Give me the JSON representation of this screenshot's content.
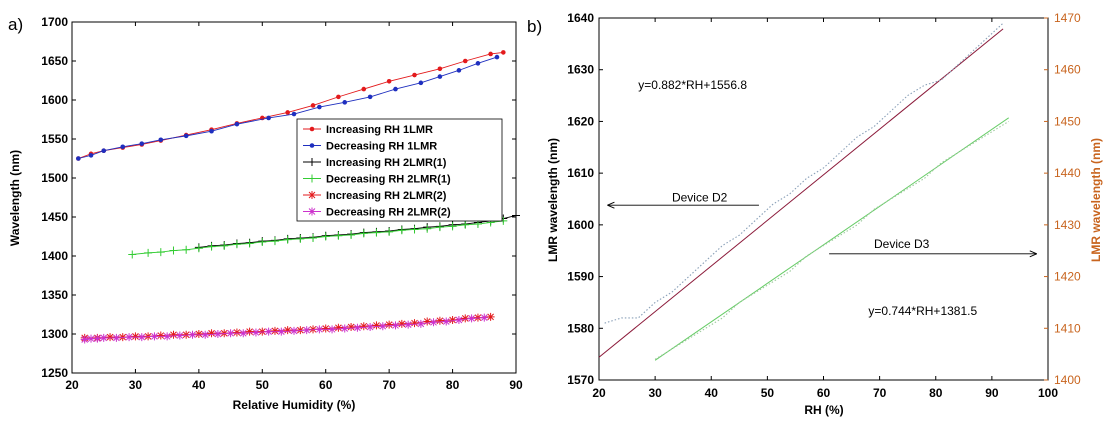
{
  "colors": {
    "red": "#e31a1c",
    "blue": "#1f2fbf",
    "black": "#000000",
    "green": "#33cc33",
    "magenta": "#cc33cc",
    "dark_red": "#8b1a3a",
    "light_green": "#66cc66",
    "orange_axis": "#c8641e",
    "gray_blue_dotted": "#8aa0b8",
    "gray_green_dotted": "#9ec99e"
  },
  "chart_data": [
    {
      "panel_label": "a)",
      "type": "line",
      "xlabel": "Relative Humidity (%)",
      "ylabel": "Wavelength (nm)",
      "xlim": [
        20,
        90
      ],
      "ylim": [
        1250,
        1700
      ],
      "xticks": [
        "20",
        "30",
        "40",
        "50",
        "60",
        "70",
        "80",
        "90"
      ],
      "yticks": [
        "1250",
        "1300",
        "1350",
        "1400",
        "1450",
        "1500",
        "1550",
        "1600",
        "1650",
        "1700"
      ],
      "legend_position": "right-middle",
      "series": [
        {
          "name": "Increasing RH 1LMR",
          "color_key": "red",
          "marker": "dot",
          "x": [
            21,
            23,
            25,
            28,
            31,
            34,
            38,
            42,
            46,
            50,
            54,
            58,
            62,
            66,
            70,
            74,
            78,
            82,
            86,
            88
          ],
          "y": [
            1525,
            1531,
            1535,
            1539,
            1543,
            1548,
            1555,
            1562,
            1570,
            1577,
            1584,
            1593,
            1604,
            1614,
            1624,
            1632,
            1640,
            1650,
            1659,
            1661
          ]
        },
        {
          "name": "Decreasing RH 1LMR",
          "color_key": "blue",
          "marker": "dot",
          "x": [
            21,
            23,
            25,
            28,
            31,
            34,
            38,
            42,
            46,
            51,
            55,
            59,
            63,
            67,
            71,
            75,
            78,
            81,
            84,
            87
          ],
          "y": [
            1525,
            1529,
            1535,
            1540,
            1544,
            1549,
            1554,
            1560,
            1569,
            1577,
            1582,
            1591,
            1597,
            1604,
            1614,
            1622,
            1630,
            1638,
            1647,
            1655
          ]
        },
        {
          "name": "Increasing RH 2LMR(1)",
          "color_key": "black",
          "marker": "plus",
          "x": [
            40,
            42,
            44,
            46,
            48,
            50,
            52,
            54,
            56,
            58,
            60,
            62,
            64,
            66,
            68,
            70,
            72,
            74,
            76,
            78,
            80,
            82,
            84,
            86,
            88,
            90
          ],
          "y": [
            1411,
            1413,
            1414,
            1416,
            1417,
            1419,
            1420,
            1422,
            1423,
            1424,
            1426,
            1427,
            1428,
            1430,
            1431,
            1432,
            1434,
            1435,
            1437,
            1438,
            1440,
            1441,
            1443,
            1445,
            1448,
            1452
          ]
        },
        {
          "name": "Decreasing RH 2LMR(1)",
          "color_key": "green",
          "marker": "plus",
          "x": [
            29.5,
            32,
            34,
            36,
            38,
            40,
            42,
            44,
            46,
            48,
            50,
            52,
            54,
            56,
            58,
            60,
            62,
            64,
            66,
            68,
            70,
            72,
            74,
            76,
            78,
            80,
            82,
            84,
            86,
            88
          ],
          "y": [
            1402,
            1404,
            1405,
            1407,
            1408,
            1410,
            1412,
            1413,
            1415,
            1416,
            1418,
            1419,
            1421,
            1422,
            1423,
            1425,
            1426,
            1427,
            1429,
            1430,
            1431,
            1433,
            1434,
            1435,
            1437,
            1438,
            1440,
            1441,
            1443,
            1445
          ]
        },
        {
          "name": "Increasing RH 2LMR(2)",
          "color_key": "red",
          "marker": "asterisk",
          "x": [
            22,
            24,
            26,
            28,
            30,
            32,
            34,
            36,
            38,
            40,
            42,
            44,
            46,
            48,
            50,
            52,
            54,
            56,
            58,
            60,
            62,
            64,
            66,
            68,
            70,
            72,
            74,
            76,
            78,
            80,
            82,
            84,
            86
          ],
          "y": [
            1295,
            1295,
            1296,
            1296,
            1297,
            1297,
            1298,
            1299,
            1299,
            1300,
            1301,
            1301,
            1302,
            1303,
            1303,
            1304,
            1305,
            1305,
            1306,
            1307,
            1308,
            1309,
            1310,
            1311,
            1312,
            1313,
            1314,
            1316,
            1317,
            1318,
            1320,
            1321,
            1322
          ]
        },
        {
          "name": "Decreasing RH 2LMR(2)",
          "color_key": "magenta",
          "marker": "asterisk",
          "x": [
            22,
            23,
            24,
            25,
            27,
            29,
            31,
            33,
            35,
            37,
            39,
            41,
            43,
            45,
            47,
            49,
            51,
            53,
            55,
            57,
            59,
            61,
            63,
            65,
            67,
            69,
            71,
            73,
            75,
            77,
            79,
            81,
            83,
            85
          ],
          "y": [
            1293,
            1294,
            1294,
            1295,
            1295,
            1296,
            1296,
            1297,
            1297,
            1298,
            1299,
            1299,
            1300,
            1301,
            1301,
            1302,
            1303,
            1303,
            1304,
            1305,
            1306,
            1306,
            1307,
            1308,
            1309,
            1310,
            1311,
            1312,
            1313,
            1315,
            1316,
            1318,
            1320,
            1321
          ]
        }
      ]
    },
    {
      "panel_label": "b)",
      "type": "line",
      "xlabel": "RH (%)",
      "ylabel_left": "LMR wavelength (nm)",
      "ylabel_right": "LMR wavelength (nm)",
      "xlim": [
        20,
        100
      ],
      "ylim_left": [
        1570,
        1640
      ],
      "ylim_right": [
        1400,
        1470
      ],
      "xticks": [
        "20",
        "30",
        "40",
        "50",
        "60",
        "70",
        "80",
        "90",
        "100"
      ],
      "yticks_left": [
        "1570",
        "1580",
        "1590",
        "1600",
        "1610",
        "1620",
        "1630",
        "1640"
      ],
      "yticks_right": [
        "1400",
        "1410",
        "1420",
        "1430",
        "1440",
        "1450",
        "1460",
        "1470"
      ],
      "annotations": [
        {
          "text": "y=0.882*RH+1556.8",
          "x": 27,
          "y_left": 1626.3
        },
        {
          "text": "Device D2",
          "x": 33,
          "y_left": 1604.5,
          "arrow": "left"
        },
        {
          "text": "Device D3",
          "x": 69,
          "y_left": 1595.5,
          "arrow": "right"
        },
        {
          "text": "y=0.744*RH+1381.5",
          "x": 68,
          "y_left": 1582.6
        }
      ],
      "series": [
        {
          "name": "",
          "axis": "left",
          "color_key": "dark_red",
          "style": "fit",
          "x": [
            20,
            92
          ],
          "y": [
            1574.4,
            1637.9
          ]
        },
        {
          "name": "",
          "axis": "left",
          "color_key": "gray_blue_dotted",
          "style": "dotted",
          "x": [
            21,
            24,
            27,
            30,
            33,
            36,
            39,
            42,
            45,
            48,
            51,
            54,
            57,
            60,
            63,
            66,
            69,
            72,
            75,
            78,
            81,
            84,
            87,
            90,
            92
          ],
          "y": [
            1581,
            1582,
            1582,
            1585,
            1587,
            1590,
            1593,
            1596,
            1598,
            1601,
            1604,
            1606,
            1609,
            1611,
            1614,
            1617,
            1619,
            1622,
            1625,
            1627,
            1628,
            1631,
            1634,
            1637,
            1639
          ]
        },
        {
          "name": "",
          "axis": "right",
          "color_key": "light_green",
          "style": "fit",
          "x": [
            30,
            93
          ],
          "y": [
            1403.8,
            1450.7
          ]
        },
        {
          "name": "",
          "axis": "right",
          "color_key": "gray_green_dotted",
          "style": "dotted",
          "x": [
            30,
            33,
            36,
            39,
            42,
            45,
            48,
            51,
            54,
            57,
            60,
            63,
            66,
            69,
            72,
            75,
            78,
            81,
            84,
            87,
            90,
            93
          ],
          "y": [
            1404,
            1406,
            1408,
            1410,
            1412,
            1415,
            1417,
            1419,
            1421,
            1424,
            1426,
            1428,
            1430,
            1433,
            1435,
            1437,
            1439,
            1442,
            1444,
            1446,
            1448,
            1450
          ]
        }
      ]
    }
  ]
}
